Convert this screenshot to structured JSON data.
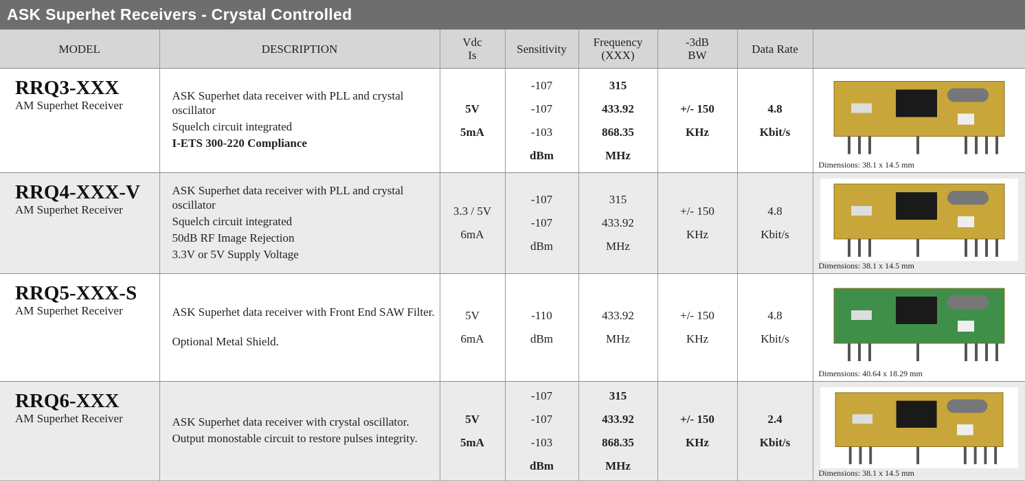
{
  "title": "ASK Superhet  Receivers  -  Crystal Controlled",
  "table": {
    "header": [
      "MODEL",
      "DESCRIPTION",
      "Vdc\nIs",
      "Sensitivity",
      "Frequency\n(XXX)",
      "-3dB\nBW",
      "Data Rate"
    ],
    "rows": [
      {
        "model": "RRQ3-XXX",
        "subtitle": "AM Superhet  Receiver",
        "description": [
          "ASK  Superhet data receiver  with  PLL and crystal oscillator",
          "Squelch circuit integrated",
          "I-ETS 300-220 Compliance"
        ],
        "vdc": [
          "5V",
          "5mA"
        ],
        "sensitivity": [
          "-107",
          "-107",
          "-103",
          "dBm"
        ],
        "frequency": [
          "315",
          "433.92",
          "868.35",
          "MHz"
        ],
        "bw": [
          "+/- 150",
          "KHz"
        ],
        "data_rate": [
          "4.8",
          "Kbit/s"
        ],
        "dimensions": "Dimensions: 38.1 x 14.5 mm"
      },
      {
        "model": "RRQ4-XXX-V",
        "subtitle": "AM Superhet  Receiver",
        "description": [
          "ASK  Superhet data receiver  with  PLL and crystal oscillator",
          "Squelch circuit integrated",
          "50dB RF Image Rejection",
          "3.3V or 5V Supply Voltage"
        ],
        "vdc": [
          "3.3 / 5V",
          "6mA"
        ],
        "sensitivity": [
          "-107",
          "-107",
          "dBm"
        ],
        "frequency": [
          "315",
          "433.92",
          "MHz"
        ],
        "bw": [
          "+/- 150",
          "KHz"
        ],
        "data_rate": [
          "4.8",
          "Kbit/s"
        ],
        "dimensions": "Dimensions: 38.1 x 14.5 mm"
      },
      {
        "model": "RRQ5-XXX-S",
        "subtitle": "AM Superhet  Receiver",
        "description": [
          "ASK Superhet data receiver with Front End SAW Filter.",
          "Optional Metal Shield."
        ],
        "vdc": [
          "5V",
          "6mA"
        ],
        "sensitivity": [
          "-110",
          "dBm"
        ],
        "frequency": [
          "433.92",
          "MHz"
        ],
        "bw": [
          "+/- 150",
          "KHz"
        ],
        "data_rate": [
          "4.8",
          "Kbit/s"
        ],
        "dimensions": "Dimensions: 40.64 x 18.29 mm"
      },
      {
        "model": "RRQ6-XXX",
        "subtitle": "AM Superhet  Receiver",
        "description": [
          "ASK Superhet data receiver with  crystal oscillator.",
          "Output monostable circuit to restore pulses integrity."
        ],
        "vdc": [
          "5V",
          "5mA"
        ],
        "sensitivity": [
          "-107",
          "-107",
          "-103",
          "dBm"
        ],
        "frequency": [
          "315",
          "433.92",
          "868.35",
          "MHz"
        ],
        "bw": [
          "+/- 150",
          "KHz"
        ],
        "data_rate": [
          "2.4",
          "Kbit/s"
        ],
        "dimensions": "Dimensions: 38.1 x 14.5 mm"
      }
    ]
  }
}
